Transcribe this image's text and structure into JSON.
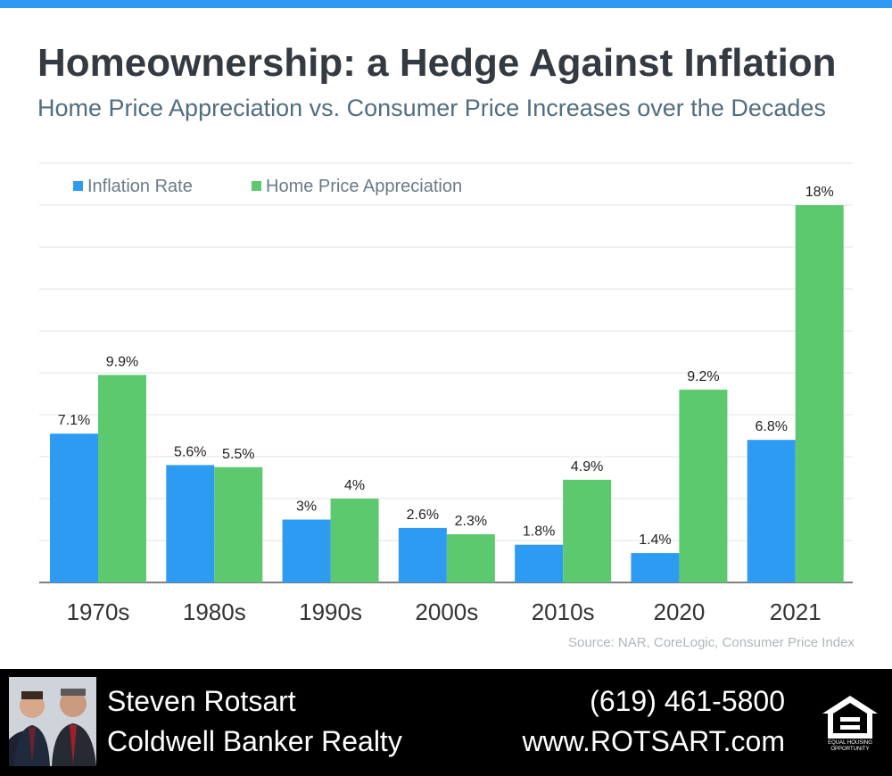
{
  "header": {
    "title": "Homeownership: a Hedge Against Inflation",
    "subtitle": "Home Price Appreciation vs. Consumer Price Increases over the Decades"
  },
  "chart_data": {
    "type": "bar",
    "categories": [
      "1970s",
      "1980s",
      "1990s",
      "2000s",
      "2010s",
      "2020",
      "2021"
    ],
    "series": [
      {
        "name": "Inflation Rate",
        "color": "#2e9bf2",
        "values": [
          7.1,
          5.6,
          3,
          2.6,
          1.8,
          1.4,
          6.8
        ],
        "labels": [
          "7.1%",
          "5.6%",
          "3%",
          "2.6%",
          "1.8%",
          "1.4%",
          "6.8%"
        ]
      },
      {
        "name": "Home Price Appreciation",
        "color": "#5dc96f",
        "values": [
          9.9,
          5.5,
          4,
          2.3,
          4.9,
          9.2,
          18
        ],
        "labels": [
          "9.9%",
          "5.5%",
          "4%",
          "2.3%",
          "4.9%",
          "9.2%",
          "18%"
        ]
      }
    ],
    "ylim": [
      0,
      20
    ],
    "grid": true,
    "legend": "top-left"
  },
  "source": "Source: NAR, CoreLogic, Consumer Price Index",
  "footer": {
    "name": "Steven Rotsart",
    "company": "Coldwell Banker Realty",
    "phone": "(619) 461-5800",
    "website": "www.ROTSART.com",
    "logo_text": "EQUAL HOUSING OPPORTUNITY",
    "logo_icon": "equal-housing-icon"
  }
}
